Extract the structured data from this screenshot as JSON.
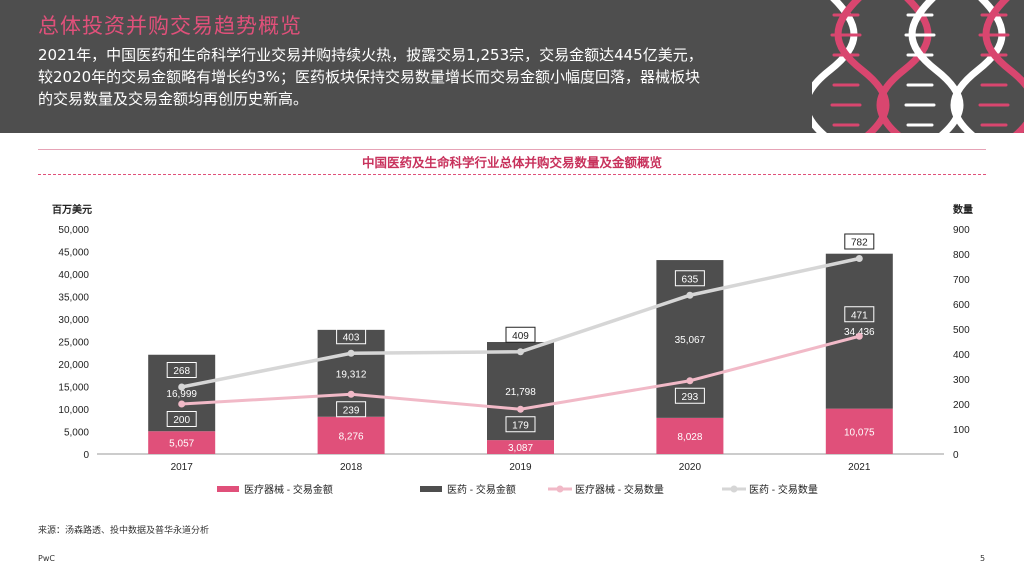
{
  "header": {
    "title": "总体投资并购交易趋势概览",
    "summary_line1": "2021年，中国医药和生命科学行业交易并购持续火热，披露交易1,253宗，交易金额达445亿美元，",
    "summary_line2": "较2020年的交易金额略有增长约3%；医药板块保持交易数量增长而交易金额小幅度回落，器械板块",
    "summary_line3": "的交易数量及交易金额均再创历史新高。"
  },
  "chart_data": {
    "type": "bar",
    "title": "中国医药及生命科学行业总体并购交易数量及金额概览",
    "ylabel": "百万美元",
    "y2label": "数量",
    "ylim": [
      0,
      50000
    ],
    "y2lim": [
      0,
      900
    ],
    "yticks": [
      "0",
      "5,000",
      "10,000",
      "15,000",
      "20,000",
      "25,000",
      "30,000",
      "35,000",
      "40,000",
      "45,000",
      "50,000"
    ],
    "y2ticks": [
      "0",
      "100",
      "200",
      "300",
      "400",
      "500",
      "600",
      "700",
      "800",
      "900"
    ],
    "categories": [
      "2017",
      "2018",
      "2019",
      "2020",
      "2021"
    ],
    "series": [
      {
        "name": "医疗器械 - 交易金额",
        "kind": "bar",
        "values": [
          5057,
          8276,
          3087,
          8028,
          10075
        ],
        "labels": [
          "5,057",
          "8,276",
          "3,087",
          "8,028",
          "10,075"
        ],
        "color": "#e0507a"
      },
      {
        "name": "医药 - 交易金额",
        "kind": "bar",
        "values": [
          16999,
          19312,
          21798,
          35067,
          34436
        ],
        "labels": [
          "16,999",
          "19,312",
          "21,798",
          "35,067",
          "34,436"
        ],
        "color": "#4e4e4e"
      },
      {
        "name": "医疗器械 - 交易数量",
        "kind": "line",
        "axis": "right",
        "values": [
          200,
          239,
          179,
          293,
          471
        ],
        "labels": [
          "200",
          "239",
          "179",
          "293",
          "471"
        ],
        "color": "#f1b9c7"
      },
      {
        "name": "医药 - 交易数量",
        "kind": "line",
        "axis": "right",
        "values": [
          268,
          403,
          409,
          635,
          782
        ],
        "labels": [
          "268",
          "403",
          "409",
          "635",
          "782"
        ],
        "color": "#d6d6d6"
      }
    ],
    "legend_position": "bottom"
  },
  "footer": {
    "source": "来源：汤森路透、投中数据及普华永道分析",
    "brand": "PwC",
    "page": "5"
  },
  "colors": {
    "header_bg": "#4e4e4e",
    "accent": "#e0507a"
  }
}
